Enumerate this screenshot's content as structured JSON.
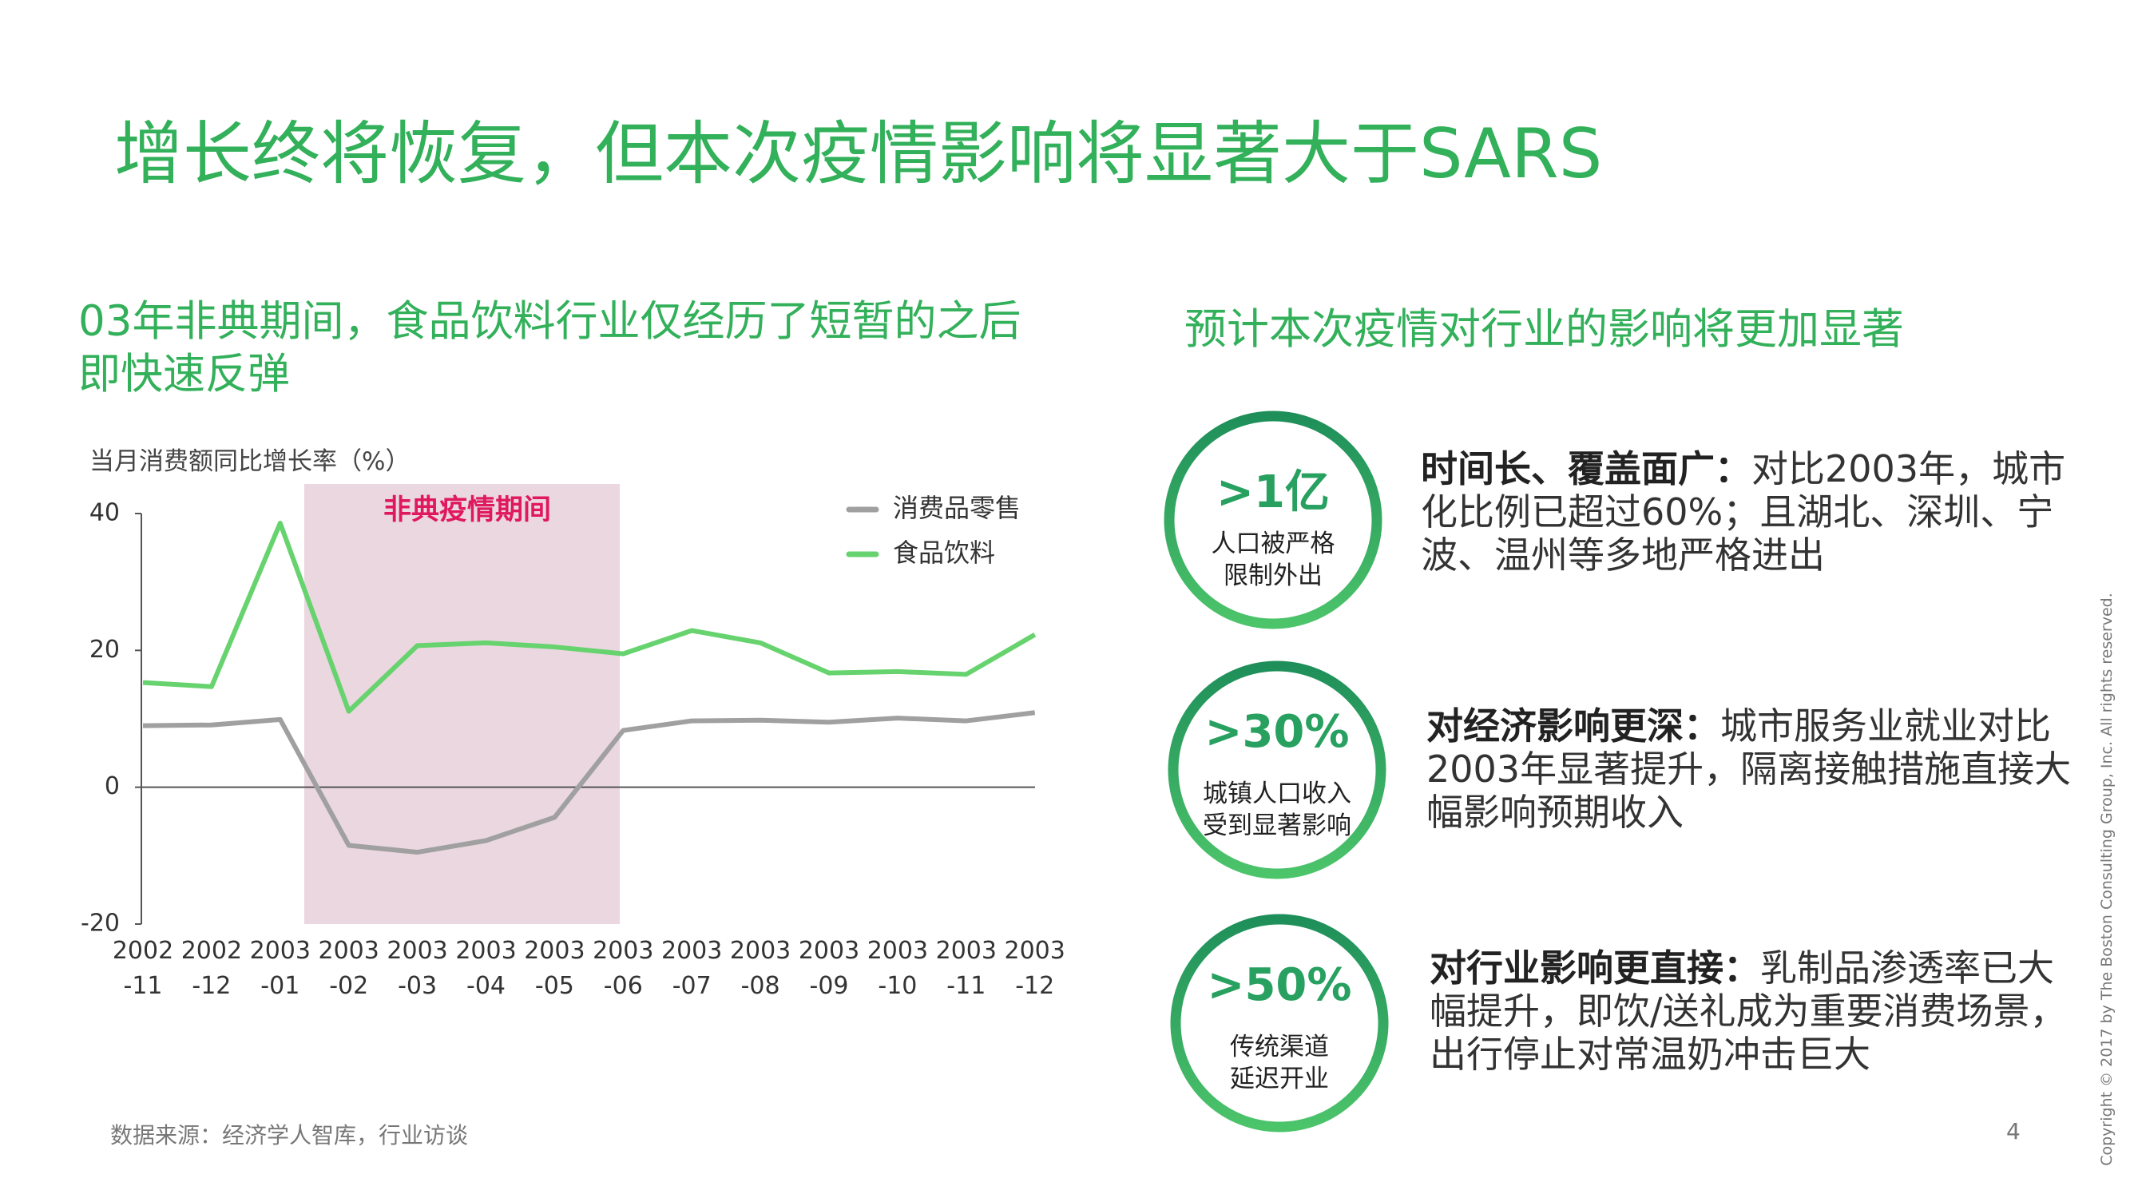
{
  "title": "增长终将恢复，但本次疫情影响将显著大于SARS",
  "left_heading": "03年非典期间，食品饮料行业仅经历了短暂的之后即快速反弹",
  "right_heading": "预计本次疫情对行业的影响将更加显著",
  "chart_data": {
    "type": "line",
    "y_label": "当月消费额同比增长率（%）",
    "highlight_label": "非典疫情期间",
    "categories": [
      "2002\n-11",
      "2002\n-12",
      "2003\n-01",
      "2003\n-02",
      "2003\n-03",
      "2003\n-04",
      "2003\n-05",
      "2003\n-06",
      "2003\n-07",
      "2003\n-08",
      "2003\n-09",
      "2003\n-10",
      "2003\n-11",
      "2003\n-12"
    ],
    "series": [
      {
        "name": "消费品零售",
        "color": "#a0a0a0",
        "values": [
          9.0,
          9.1,
          9.9,
          -8.5,
          -9.5,
          -7.8,
          -4.4,
          8.3,
          9.7,
          9.8,
          9.5,
          10.1,
          9.7,
          10.9
        ]
      },
      {
        "name": "食品饮料",
        "color": "#66d36e",
        "values": [
          15.3,
          14.7,
          38.6,
          11.1,
          20.7,
          21.1,
          20.5,
          19.5,
          22.9,
          21.1,
          16.7,
          16.9,
          16.5,
          22.3
        ]
      }
    ],
    "ylim": [
      -20,
      40
    ],
    "yticks": [
      -20,
      0,
      20,
      40
    ],
    "legend": "upper right"
  },
  "items": [
    {
      "big": ">1亿",
      "small": "人口被严格\n限制外出",
      "lead": "时间长、覆盖面广：",
      "text": "对比2003年，城市化比例已超过60%；且湖北、深圳、宁波、温州等多地严格进出"
    },
    {
      "big": ">30%",
      "small": "城镇人口收入\n受到显著影响",
      "lead": "对经济影响更深：",
      "text": "城市服务业就业对比2003年显著提升，隔离接触措施直接大幅影响预期收入"
    },
    {
      "big": ">50%",
      "small": "传统渠道\n延迟开业",
      "lead": "对行业影响更直接：",
      "text": "乳制品渗透率已大幅提升，即饮/送礼成为重要消费场景，出行停止对常温奶冲击巨大"
    }
  ],
  "source": "数据来源：经济学人智库，行业访谈",
  "page_number": "4",
  "copyright": "Copyright © 2017 by The Boston Consulting Group, Inc. All rights reserved."
}
